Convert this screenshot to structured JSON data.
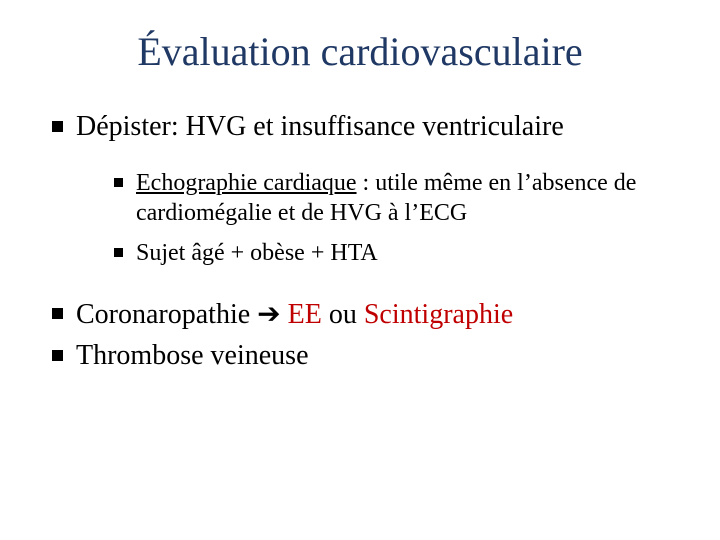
{
  "title_color": "#1f3864",
  "accent_color": "#c00000",
  "text_color": "#000000",
  "background_color": "#ffffff",
  "title_fontsize": 40,
  "level1_fontsize": 28,
  "level2_fontsize": 24,
  "font_family": "Times New Roman",
  "title": "Évaluation cardiovasculaire",
  "items": [
    {
      "text": "Dépister: HVG et insuffisance ventriculaire",
      "sub": [
        {
          "underlined": "Echographie cardiaque",
          "rest": " : utile même en l’absence de cardiomégalie et de HVG à l’ECG"
        },
        {
          "plain": "Sujet âgé + obèse + HTA"
        }
      ]
    },
    {
      "lead": "Coronaropathie ",
      "arrow": "➔",
      "mid": " ",
      "ee": "EE",
      "or": " ou ",
      "scint": "Scintigraphie"
    },
    {
      "text": "Thrombose veineuse"
    }
  ]
}
